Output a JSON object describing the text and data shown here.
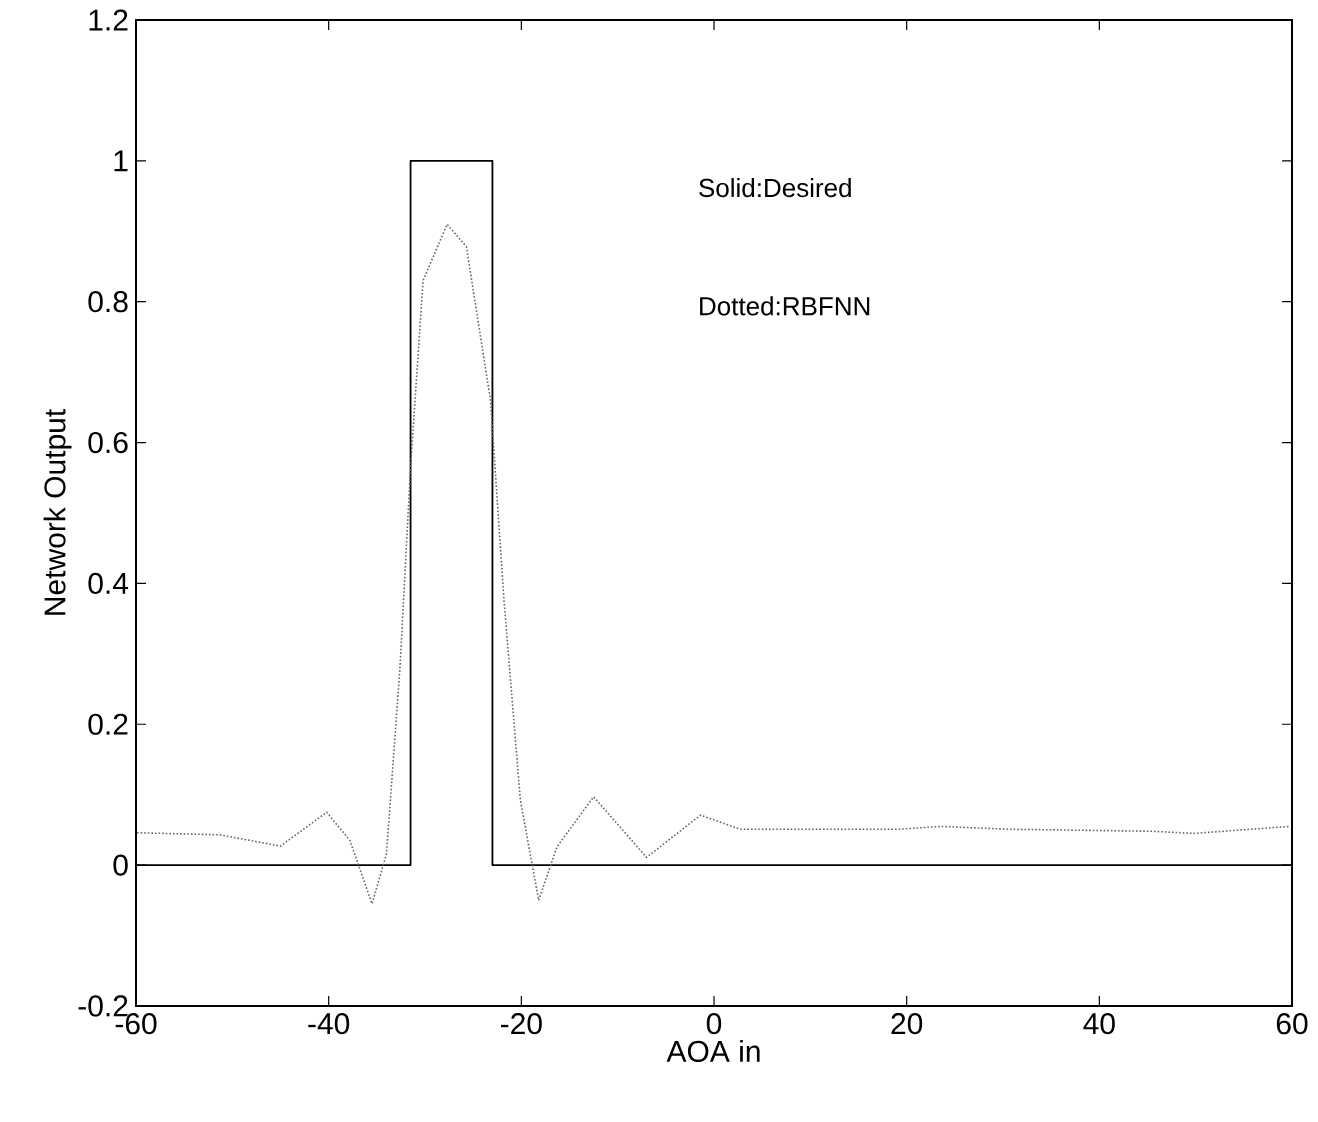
{
  "chart_data": {
    "type": "line",
    "xlabel": "AOA in",
    "ylabel": "Network Output",
    "xlim": [
      -60,
      60
    ],
    "ylim": [
      -0.2,
      1.2
    ],
    "xticks": [
      -60,
      -40,
      -20,
      0,
      20,
      40,
      60
    ],
    "yticks": [
      -0.2,
      0,
      0.2,
      0.4,
      0.6,
      0.8,
      1,
      1.2
    ],
    "annotations": [
      "Solid:Desired",
      "Dotted:RBFNN"
    ],
    "series": [
      {
        "color": "#000000",
        "line_style": "solid",
        "x": [
          -60,
          -31.5,
          -31.5,
          -23,
          -23,
          60
        ],
        "values": [
          0,
          0,
          1,
          1,
          0,
          0
        ]
      },
      {
        "color": "#666666",
        "line_style": "dotted",
        "x": [
          -59.9,
          -51.3,
          -45,
          -40.2,
          -37.8,
          -35.5,
          -34,
          -32.6,
          -31.5,
          -30.2,
          -27.7,
          -25.7,
          -23.2,
          -21.8,
          -20.1,
          -18.2,
          -16.3,
          -12.5,
          -7,
          -1.4,
          2.7,
          19.3,
          23.5,
          30.4,
          45.6,
          49.8,
          59.8
        ],
        "values": [
          0.046,
          0.043,
          0.027,
          0.075,
          0.035,
          -0.055,
          0.016,
          0.28,
          0.565,
          0.83,
          0.91,
          0.878,
          0.66,
          0.376,
          0.092,
          -0.05,
          0.026,
          0.097,
          0.011,
          0.071,
          0.051,
          0.051,
          0.055,
          0.051,
          0.048,
          0.045,
          0.055
        ]
      }
    ]
  }
}
